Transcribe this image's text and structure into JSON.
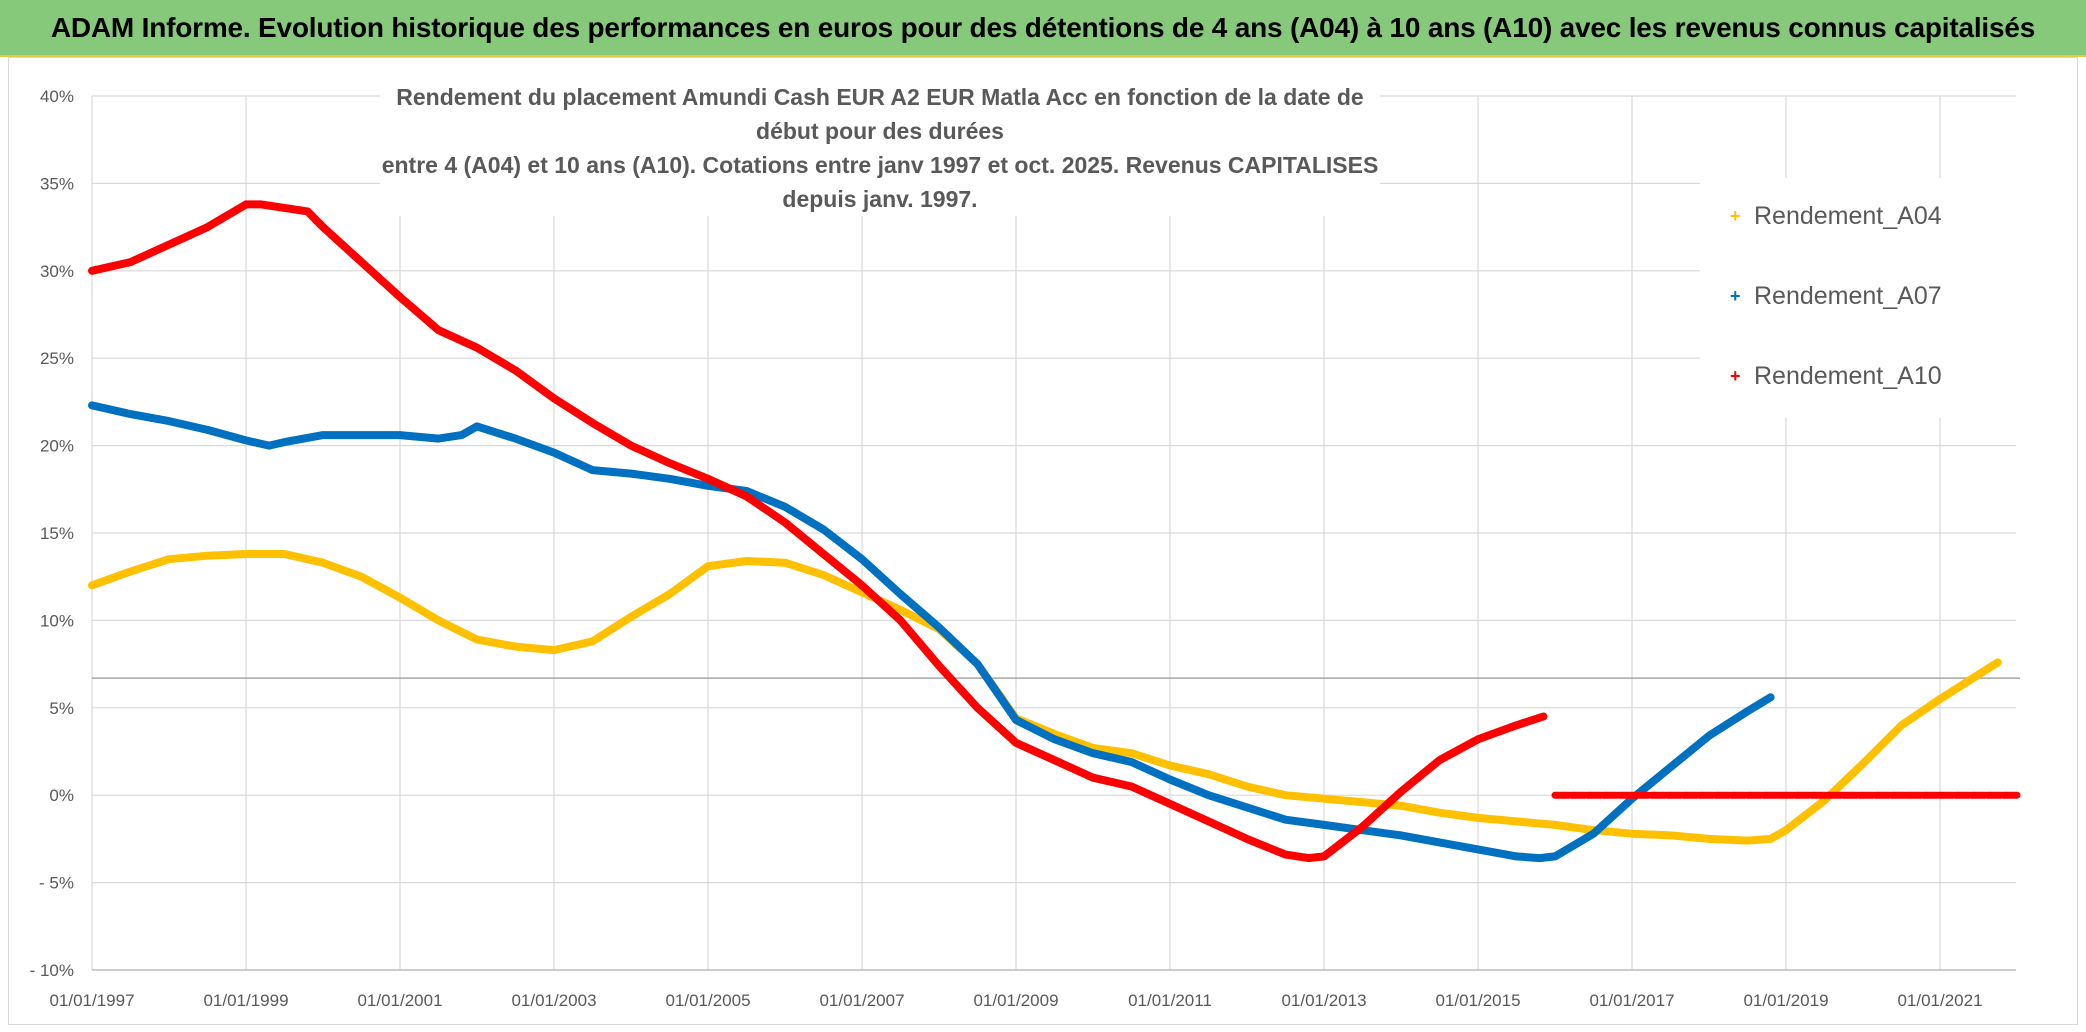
{
  "banner": {
    "title": "ADAM Informe. Evolution historique des performances en euros pour des détentions de 4 ans (A04) à 10 ans (A10) avec les revenus connus capitalisés"
  },
  "colors": {
    "banner_bg": "#86c97b",
    "A04": "#ffc000",
    "A07": "#0070c0",
    "A10": "#ff0000",
    "grid": "#d9d9d9",
    "text": "#595959"
  },
  "chart_data": {
    "type": "line",
    "title_line1": "Rendement du placement Amundi Cash EUR A2 EUR Matla Acc en fonction de la date de début pour des durées",
    "title_line2": "entre 4 (A04) et 10 ans (A10). Cotations entre janv 1997 et oct. 2025. Revenus CAPITALISES depuis janv. 1997.",
    "xlabel": "",
    "ylabel": "",
    "ylim": [
      -10,
      40
    ],
    "xlim": [
      1997.0,
      2022.0
    ],
    "y_ticks": [
      40,
      35,
      30,
      25,
      20,
      15,
      10,
      5,
      0,
      -5,
      -10
    ],
    "y_tick_labels": [
      "40%",
      "35%",
      "30%",
      "25%",
      "20%",
      "15%",
      "10%",
      "5%",
      "0%",
      "- 5%",
      "- 10%"
    ],
    "x_ticks": [
      1997,
      1999,
      2001,
      2003,
      2005,
      2007,
      2009,
      2011,
      2013,
      2015,
      2017,
      2019,
      2021
    ],
    "x_tick_labels": [
      "01/01/1997",
      "01/01/1999",
      "01/01/2001",
      "01/01/2003",
      "01/01/2005",
      "01/01/2007",
      "01/01/2009",
      "01/01/2011",
      "01/01/2013",
      "01/01/2015",
      "01/01/2017",
      "01/01/2019",
      "01/01/2021"
    ],
    "reference_line": 6.7,
    "series": [
      {
        "name": "Rendement_A04",
        "color": "#ffc000",
        "x": [
          1997.0,
          1997.5,
          1998.0,
          1998.5,
          1999.0,
          1999.5,
          2000.0,
          2000.5,
          2001.0,
          2001.5,
          2002.0,
          2002.5,
          2003.0,
          2003.5,
          2004.0,
          2004.5,
          2005.0,
          2005.5,
          2006.0,
          2006.5,
          2007.0,
          2007.5,
          2008.0,
          2008.5,
          2009.0,
          2009.5,
          2010.0,
          2010.5,
          2011.0,
          2011.5,
          2012.0,
          2012.5,
          2013.0,
          2013.5,
          2014.0,
          2014.5,
          2015.0,
          2015.5,
          2016.0,
          2016.5,
          2017.0,
          2017.5,
          2018.0,
          2018.5,
          2018.8,
          2019.0,
          2019.5,
          2020.0,
          2020.5,
          2021.0,
          2021.5,
          2021.75
        ],
        "values": [
          12.0,
          12.8,
          13.5,
          13.7,
          13.8,
          13.8,
          13.3,
          12.5,
          11.3,
          10.0,
          8.9,
          8.5,
          8.3,
          8.8,
          10.2,
          11.5,
          13.1,
          13.4,
          13.3,
          12.6,
          11.6,
          10.6,
          9.5,
          7.5,
          4.4,
          3.5,
          2.7,
          2.4,
          1.7,
          1.2,
          0.5,
          0.0,
          -0.2,
          -0.4,
          -0.6,
          -1.0,
          -1.3,
          -1.5,
          -1.7,
          -2.0,
          -2.2,
          -2.3,
          -2.5,
          -2.6,
          -2.5,
          -2.0,
          -0.3,
          1.8,
          4.0,
          5.5,
          6.9,
          7.6
        ]
      },
      {
        "name": "Rendement_A07",
        "color": "#0070c0",
        "x": [
          1997.0,
          1997.5,
          1998.0,
          1998.5,
          1999.0,
          1999.3,
          1999.5,
          2000.0,
          2000.5,
          2001.0,
          2001.5,
          2001.8,
          2002.0,
          2002.5,
          2003.0,
          2003.5,
          2004.0,
          2004.5,
          2005.0,
          2005.5,
          2006.0,
          2006.5,
          2007.0,
          2007.5,
          2008.0,
          2008.5,
          2009.0,
          2009.5,
          2010.0,
          2010.5,
          2011.0,
          2011.5,
          2012.0,
          2012.5,
          2013.0,
          2013.5,
          2014.0,
          2014.5,
          2015.0,
          2015.5,
          2015.8,
          2016.0,
          2016.5,
          2017.0,
          2017.5,
          2018.0,
          2018.5,
          2018.8
        ],
        "values": [
          22.3,
          21.8,
          21.4,
          20.9,
          20.3,
          20.0,
          20.2,
          20.6,
          20.6,
          20.6,
          20.4,
          20.6,
          21.1,
          20.4,
          19.6,
          18.6,
          18.4,
          18.1,
          17.7,
          17.4,
          16.5,
          15.2,
          13.5,
          11.5,
          9.6,
          7.5,
          4.3,
          3.2,
          2.4,
          1.9,
          0.9,
          0.0,
          -0.7,
          -1.4,
          -1.7,
          -2.0,
          -2.3,
          -2.7,
          -3.1,
          -3.5,
          -3.6,
          -3.5,
          -2.2,
          -0.2,
          1.6,
          3.4,
          4.8,
          5.6
        ]
      },
      {
        "name": "Rendement_A10",
        "color": "#ff0000",
        "x": [
          1997.0,
          1997.5,
          1998.0,
          1998.5,
          1999.0,
          1999.2,
          1999.5,
          1999.8,
          2000.0,
          2000.5,
          2001.0,
          2001.5,
          2002.0,
          2002.5,
          2003.0,
          2003.5,
          2004.0,
          2004.5,
          2005.0,
          2005.5,
          2006.0,
          2006.5,
          2007.0,
          2007.5,
          2008.0,
          2008.5,
          2009.0,
          2009.5,
          2010.0,
          2010.5,
          2011.0,
          2011.5,
          2012.0,
          2012.5,
          2012.8,
          2013.0,
          2013.5,
          2014.0,
          2014.5,
          2015.0,
          2015.5,
          2015.85
        ],
        "values": [
          30.0,
          30.5,
          31.5,
          32.5,
          33.8,
          33.8,
          33.6,
          33.4,
          32.5,
          30.5,
          28.5,
          26.6,
          25.6,
          24.3,
          22.7,
          21.3,
          20.0,
          19.0,
          18.1,
          17.1,
          15.6,
          13.8,
          12.0,
          10.0,
          7.4,
          5.0,
          3.0,
          2.0,
          1.0,
          0.5,
          -0.5,
          -1.5,
          -2.5,
          -3.4,
          -3.6,
          -3.5,
          -1.8,
          0.2,
          2.0,
          3.2,
          4.0,
          4.5
        ]
      },
      {
        "name": "Rendement_A10_zero",
        "color": "#ff0000",
        "x": [
          2016.0,
          2022.0
        ],
        "values": [
          0.0,
          0.0
        ]
      }
    ],
    "legend": {
      "position": "top-right",
      "items": [
        "Rendement_A04",
        "Rendement_A07",
        "Rendement_A10"
      ]
    }
  }
}
